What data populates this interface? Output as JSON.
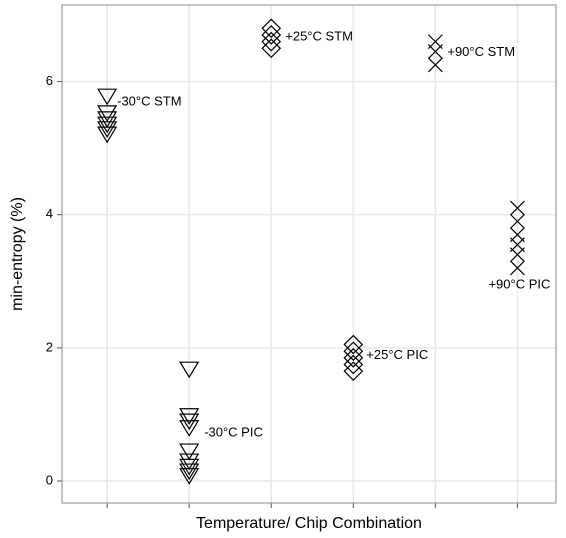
{
  "chart_data": {
    "type": "scatter",
    "y_label": "min-entropy (%)",
    "x_label": "Temperature/ Chip Combination",
    "xlim": [
      0.45,
      6.47
    ],
    "xticks": [
      1,
      2,
      3,
      4,
      5,
      6
    ],
    "ylim": [
      -0.33,
      7.15
    ],
    "yticks": [
      0,
      2,
      4,
      6
    ],
    "grid": true,
    "series": [
      {
        "name": "-30°C STM",
        "marker": "triangle-down",
        "color": "#000000",
        "x": [
          1,
          1,
          1,
          1,
          1,
          1
        ],
        "values": [
          5.78,
          5.53,
          5.44,
          5.36,
          5.29,
          5.21
        ]
      },
      {
        "name": "-30°C PIC",
        "marker": "triangle-down",
        "color": "#000000",
        "x": [
          2,
          2,
          2,
          2,
          2,
          2,
          2,
          2,
          2
        ],
        "values": [
          1.68,
          0.98,
          0.9,
          0.8,
          0.45,
          0.3,
          0.22,
          0.15,
          0.08
        ]
      },
      {
        "name": "+25°C STM",
        "marker": "diamond",
        "color": "#000000",
        "x": [
          3,
          3,
          3,
          3
        ],
        "values": [
          6.8,
          6.7,
          6.6,
          6.5
        ]
      },
      {
        "name": "+25°C PIC",
        "marker": "diamond",
        "color": "#000000",
        "x": [
          4,
          4,
          4,
          4,
          4
        ],
        "values": [
          2.05,
          1.95,
          1.85,
          1.75,
          1.65
        ]
      },
      {
        "name": "+90°C STM",
        "marker": "x",
        "color": "#000000",
        "x": [
          5,
          5,
          5
        ],
        "values": [
          6.6,
          6.45,
          6.25
        ]
      },
      {
        "name": "+90°C PIC",
        "marker": "x",
        "color": "#000000",
        "x": [
          6,
          6,
          6,
          6,
          6,
          6
        ],
        "values": [
          4.1,
          3.9,
          3.7,
          3.55,
          3.4,
          3.2
        ]
      }
    ]
  }
}
